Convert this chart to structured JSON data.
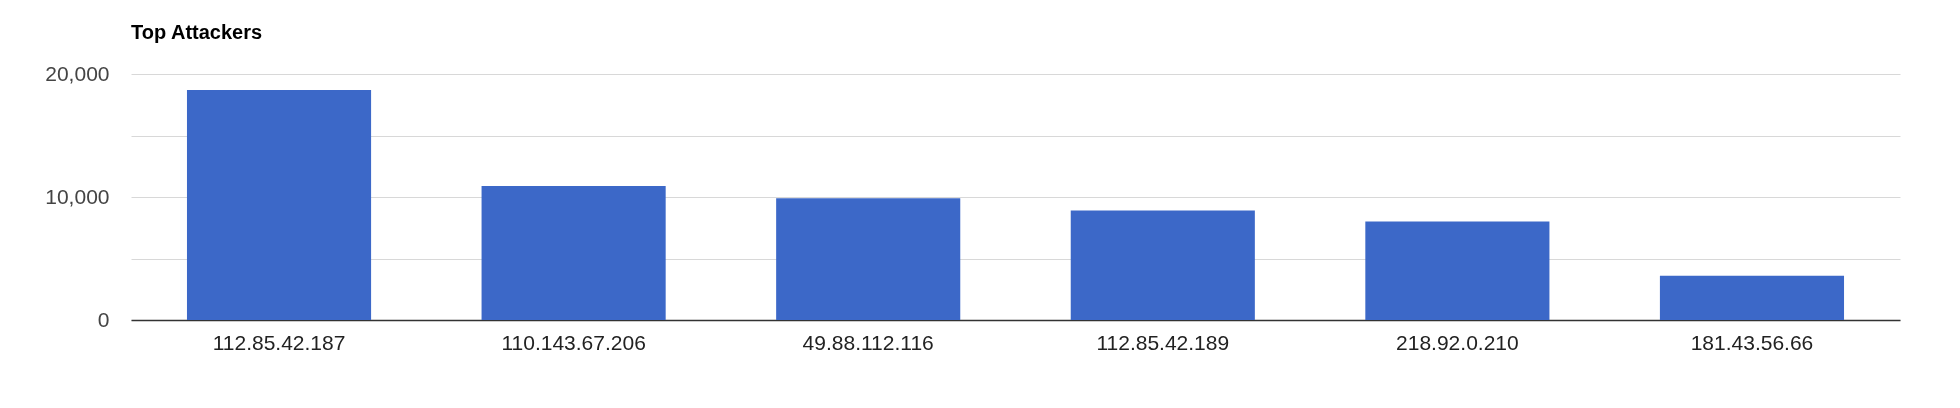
{
  "chart_data": {
    "type": "bar",
    "title": "Top Attackers",
    "categories": [
      "112.85.42.187",
      "110.143.67.206",
      "49.88.112.116",
      "112.85.42.189",
      "218.92.0.210",
      "181.43.56.66"
    ],
    "values": [
      18700,
      10900,
      9900,
      8900,
      8000,
      3600
    ],
    "color": "#3c68c8",
    "ylim": [
      0,
      20000
    ],
    "yticks": [
      0,
      {
        "value": 5000,
        "label": null
      },
      {
        "value": 10000,
        "label": "10,000"
      },
      {
        "value": 15000,
        "label": null
      },
      {
        "value": 20000,
        "label": "20,000"
      }
    ],
    "grid": true
  }
}
